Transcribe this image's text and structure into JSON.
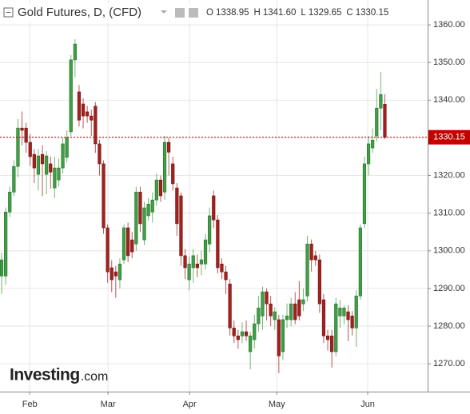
{
  "chart_data": {
    "type": "candlestick",
    "title": "Gold Futures, D, (CFD)",
    "ohlc_header": [
      {
        "key": "O",
        "text": "1338.95"
      },
      {
        "key": "H",
        "text": "1341.60"
      },
      {
        "key": "L",
        "text": "1329.65"
      },
      {
        "key": "C",
        "text": "1330.15"
      }
    ],
    "logo": {
      "main": "Investing",
      "suffix": ".com"
    },
    "up_color": "#3f9f45",
    "down_color": "#a3201d",
    "open": [
      1293.3,
      1293.3,
      1310.3,
      1315.6,
      1322.4,
      1332.6,
      1332.6,
      1328.8,
      1325.6,
      1320.3,
      1325.6,
      1320.3,
      1323.1,
      1316.7,
      1318.8,
      1322.0,
      1324.8,
      1331.6,
      1350.7,
      1342.2,
      1339.0,
      1336.9,
      1335.8,
      1338.4,
      1328.4,
      1323.1,
      1306.1,
      1295.5,
      1294.4,
      1292.3,
      1297.6,
      1306.1,
      1302.9,
      1301.8,
      1315.6,
      1302.9,
      1309.3,
      1310.3,
      1313.5,
      1318.8,
      1315.6,
      1328.8,
      1323.1,
      1316.7,
      1314.6,
      1298.7,
      1292.3,
      1295.5,
      1296.5,
      1296.5,
      1296.5,
      1301.8,
      1314.6,
      1308.2,
      1296.5,
      1294.4,
      1291.2,
      1279.5,
      1277.4,
      1277.4,
      1278.5,
      1273.2,
      1276.4,
      1280.6,
      1282.7,
      1289.1,
      1285.9,
      1281.7,
      1281.7,
      1273.2,
      1281.7,
      1281.7,
      1285.9,
      1287.0,
      1285.9,
      1288.0,
      1301.8,
      1298.7,
      1297.6,
      1287.0,
      1277.4,
      1277.4,
      1273.2,
      1282.7,
      1282.7,
      1283.8,
      1282.7,
      1279.5,
      1288.0,
      1307.2,
      1323.1,
      1327.3,
      1330.5,
      1337.9,
      1338.95
    ],
    "high": [
      1299.5,
      1311.5,
      1317.0,
      1324.0,
      1335.0,
      1337.0,
      1334.0,
      1331.0,
      1327.0,
      1327.0,
      1328.0,
      1326.5,
      1325.0,
      1325.0,
      1324.5,
      1330.0,
      1332.0,
      1352.0,
      1356.2,
      1344.0,
      1340.5,
      1338.5,
      1337.5,
      1339.5,
      1329.5,
      1324.0,
      1307.0,
      1297.5,
      1296.0,
      1298.0,
      1307.0,
      1307.5,
      1305.0,
      1317.0,
      1317.0,
      1313.0,
      1314.0,
      1315.5,
      1320.5,
      1320.0,
      1330.5,
      1330.0,
      1325.0,
      1318.0,
      1315.5,
      1300.5,
      1298.5,
      1300.5,
      1299.0,
      1300.0,
      1304.5,
      1311.5,
      1316.0,
      1309.5,
      1298.0,
      1296.0,
      1292.5,
      1281.5,
      1279.0,
      1281.0,
      1281.5,
      1278.5,
      1283.0,
      1288.0,
      1290.5,
      1290.0,
      1288.0,
      1285.0,
      1283.0,
      1283.0,
      1286.0,
      1287.5,
      1289.0,
      1292.0,
      1290.0,
      1304.0,
      1303.0,
      1300.0,
      1299.0,
      1288.5,
      1279.0,
      1279.0,
      1287.5,
      1287.0,
      1285.5,
      1285.5,
      1284.0,
      1289.5,
      1307.0,
      1325.0,
      1330.5,
      1332.5,
      1343.0,
      1347.5,
      1341.6
    ],
    "low": [
      1288.5,
      1291.0,
      1309.0,
      1314.5,
      1319.5,
      1328.0,
      1326.0,
      1322.5,
      1318.0,
      1316.0,
      1314.5,
      1315.0,
      1316.5,
      1314.0,
      1317.0,
      1320.5,
      1323.5,
      1330.5,
      1346.0,
      1333.0,
      1332.5,
      1334.0,
      1330.5,
      1326.0,
      1320.0,
      1304.5,
      1291.5,
      1289.0,
      1287.5,
      1290.0,
      1296.5,
      1297.0,
      1298.0,
      1300.0,
      1305.0,
      1301.5,
      1308.0,
      1307.5,
      1312.0,
      1313.0,
      1313.5,
      1320.0,
      1316.0,
      1304.0,
      1296.0,
      1292.5,
      1289.5,
      1291.5,
      1293.0,
      1293.5,
      1295.0,
      1299.5,
      1306.0,
      1294.0,
      1292.5,
      1288.5,
      1277.5,
      1275.5,
      1274.0,
      1275.5,
      1276.0,
      1268.5,
      1274.0,
      1278.5,
      1279.0,
      1281.5,
      1280.0,
      1279.0,
      1267.5,
      1271.0,
      1279.5,
      1280.0,
      1280.5,
      1281.5,
      1284.0,
      1286.5,
      1294.5,
      1296.0,
      1283.5,
      1275.5,
      1273.5,
      1269.0,
      1272.0,
      1279.5,
      1280.5,
      1276.0,
      1277.5,
      1274.5,
      1287.0,
      1306.0,
      1320.0,
      1326.0,
      1329.0,
      1332.0,
      1329.65
    ],
    "close": [
      1297.6,
      1310.3,
      1315.6,
      1322.4,
      1332.6,
      1332.0,
      1328.8,
      1325.0,
      1322.0,
      1325.2,
      1323.1,
      1325.2,
      1320.9,
      1322.0,
      1322.0,
      1328.4,
      1330.1,
      1350.7,
      1354.9,
      1334.7,
      1335.8,
      1335.8,
      1334.7,
      1328.4,
      1323.1,
      1306.1,
      1294.4,
      1292.3,
      1293.3,
      1296.5,
      1306.1,
      1298.7,
      1299.7,
      1315.6,
      1307.2,
      1311.4,
      1312.4,
      1313.5,
      1318.8,
      1314.6,
      1328.8,
      1326.2,
      1317.8,
      1307.2,
      1298.7,
      1295.5,
      1296.5,
      1298.7,
      1295.5,
      1297.6,
      1302.9,
      1309.3,
      1308.2,
      1295.5,
      1294.4,
      1292.3,
      1279.5,
      1277.4,
      1276.4,
      1278.5,
      1277.4,
      1277.4,
      1280.6,
      1284.8,
      1289.1,
      1285.9,
      1282.7,
      1283.8,
      1272.1,
      1281.7,
      1282.7,
      1285.9,
      1281.7,
      1282.7,
      1287.0,
      1301.8,
      1297.6,
      1297.6,
      1285.9,
      1277.4,
      1276.4,
      1273.2,
      1285.9,
      1284.8,
      1284.8,
      1281.7,
      1279.5,
      1288.0,
      1306.1,
      1323.1,
      1328.4,
      1329.4,
      1337.9,
      1341.5,
      1330.15
    ],
    "xlim": [
      -0.4,
      104.5
    ],
    "xticks": [
      {
        "value": 6.9,
        "label": "Feb"
      },
      {
        "value": 26.1,
        "label": "Mar"
      },
      {
        "value": 46.1,
        "label": "Apr"
      },
      {
        "value": 67.5,
        "label": "May"
      },
      {
        "value": 89.8,
        "label": "Jun"
      }
    ],
    "ylim": [
      1262.6,
      1366.6
    ],
    "yticks": [
      {
        "value": 1270,
        "label": "1270.00"
      },
      {
        "value": 1280,
        "label": "1280.00"
      },
      {
        "value": 1290,
        "label": "1290.00"
      },
      {
        "value": 1300,
        "label": "1300.00"
      },
      {
        "value": 1310,
        "label": "1310.00"
      },
      {
        "value": 1320,
        "label": "1320.00"
      },
      {
        "value": 1330,
        "label": "1330.00"
      },
      {
        "value": 1340,
        "label": "1340.00"
      },
      {
        "value": 1350,
        "label": "1350.00"
      },
      {
        "value": 1360,
        "label": "1360.00"
      }
    ],
    "price_line": {
      "value": 1330.15,
      "label": "1330.15",
      "color": "#c40000"
    },
    "grid": true
  }
}
